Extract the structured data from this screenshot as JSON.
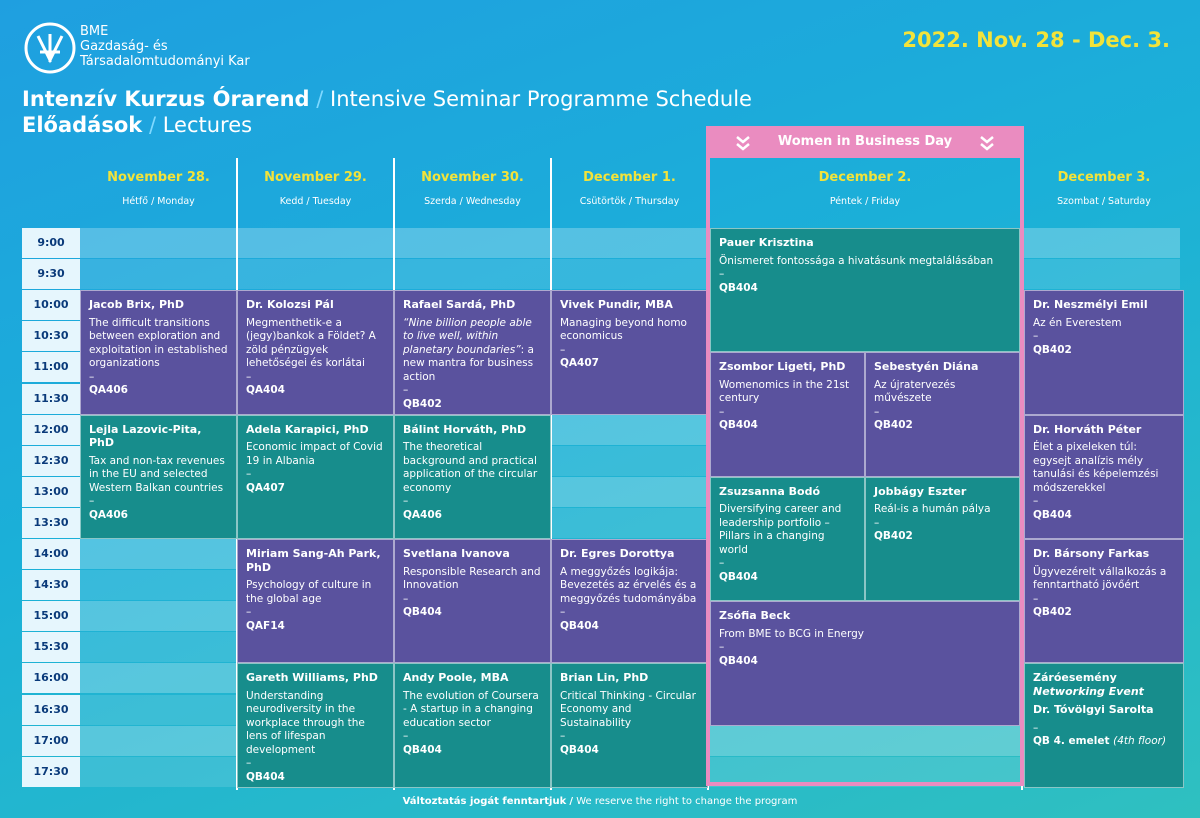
{
  "header": {
    "logo_lines": [
      "BME",
      "Gazdaság- és",
      "Társadalomtudományi Kar"
    ],
    "dates": "2022. Nov. 28 - Dec. 3.",
    "title_hu": "Intenzív Kurzus Órarend",
    "separator": "/",
    "title_en": "Intensive Seminar Programme Schedule",
    "subtitle_hu": "Előadások",
    "subtitle_en": "Lectures"
  },
  "banner": "Women in Business Day",
  "dash": "–",
  "times": [
    "9:00",
    "9:30",
    "10:00",
    "10:30",
    "11:00",
    "11:30",
    "12:00",
    "12:30",
    "13:00",
    "13:30",
    "14:00",
    "14:30",
    "15:00",
    "15:30",
    "16:00",
    "16:30",
    "17:00",
    "17:30"
  ],
  "days": [
    {
      "date": "November 28.",
      "weekday": "Hétfő / Monday",
      "sessions": [
        {
          "speaker": "Jacob Brix, PhD",
          "title": "The difficult transitions between exploration and exploitation in established organizations",
          "room": "QA406"
        },
        {
          "speaker": "Lejla Lazovic-Pita, PhD",
          "title": "Tax and non-tax revenues in the EU and selected Western Balkan countries",
          "room": "QA406"
        }
      ]
    },
    {
      "date": "November 29.",
      "weekday": "Kedd / Tuesday",
      "sessions": [
        {
          "speaker": "Dr. Kolozsi Pál",
          "title": "Megmenthetik-e a (jegy)bankok a Földet? A zöld pénzügyek lehetőségei és korlátai",
          "room": "QA404"
        },
        {
          "speaker": "Adela Karapici, PhD",
          "title": "Economic impact of Covid 19 in Albania",
          "room": "QA407"
        },
        {
          "speaker": "Miriam Sang-Ah Park, PhD",
          "title": "Psychology of culture in the global age",
          "room": "QAF14"
        },
        {
          "speaker": "Gareth Williams, PhD",
          "title": "Understanding neurodiversity in the workplace through the lens of lifespan development",
          "room": "QB404"
        }
      ]
    },
    {
      "date": "November 30.",
      "weekday": "Szerda / Wednesday",
      "sessions": [
        {
          "speaker": "Rafael Sardá, PhD",
          "title_italic": "“Nine billion people able to live well, within planetary boundaries”",
          "title": ": a new mantra for business action",
          "room": "QB402"
        },
        {
          "speaker": "Bálint Horváth, PhD",
          "title": "The theoretical background and practical application of the circular economy",
          "room": "QA406"
        },
        {
          "speaker": "Svetlana Ivanova",
          "title": "Responsible Research and Innovation",
          "room": "QB404"
        },
        {
          "speaker": "Andy Poole, MBA",
          "title": "The evolution of Coursera - A startup in a changing education sector",
          "room": "QB404"
        }
      ]
    },
    {
      "date": "December 1.",
      "weekday": "Csütörtök / Thursday",
      "sessions": [
        {
          "speaker": "Vivek Pundir, MBA",
          "title": "Managing beyond homo economicus",
          "room": "QA407"
        },
        {
          "speaker": "Dr. Egres Dorottya",
          "title": "A meggyőzés logikája: Bevezetés az érvelés és a meggyőzés tudományába",
          "room": "QB404"
        },
        {
          "speaker": "Brian Lin, PhD",
          "title": "Critical Thinking - Circular Economy and Sustainability",
          "room": "QB404"
        }
      ]
    },
    {
      "date": "December 2.",
      "weekday": "Péntek / Friday",
      "sessions": [
        {
          "speaker": "Pauer Krisztina",
          "title": "Önismeret fontossága a hivatásunk megtalálásában",
          "room": "QB404"
        },
        {
          "speaker": "Zsombor Ligeti, PhD",
          "title": "Womenomics in the 21st century",
          "room": "QB404"
        },
        {
          "speaker": "Sebestyén Diána",
          "title": "Az újratervezés művészete",
          "room": "QB402"
        },
        {
          "speaker": "Zsuzsanna Bodó",
          "title": "Diversifying career and leadership portfolio – Pillars in a changing world",
          "room": "QB404"
        },
        {
          "speaker": "Jobbágy Eszter",
          "title": "Reál-is a humán pálya",
          "room": "QB402"
        },
        {
          "speaker": "Zsófia Beck",
          "title": "From BME to BCG in Energy",
          "room": "QB404"
        }
      ]
    },
    {
      "date": "December 3.",
      "weekday": "Szombat / Saturday",
      "sessions": [
        {
          "speaker": "Dr. Neszmélyi Emil",
          "title": "Az én Everestem",
          "room": "QB402"
        },
        {
          "speaker": "Dr. Horváth Péter",
          "title": "Élet a pixeleken túl: egysejt analízis mély tanulási és képelemzési módszerekkel",
          "room": "QB404"
        },
        {
          "speaker": "Dr. Bársony Farkas",
          "title": "Ügyvezérelt vállalkozás a fenntartható jövőért",
          "room": "QB402"
        },
        {
          "label": "Záróesemény",
          "label_en": "Networking Event",
          "speaker": "Dr. Tóvölgyi Sarolta",
          "room": "QB 4. emelet",
          "room_note": "(4th floor)"
        }
      ]
    }
  ],
  "footer": {
    "note_hu": "Változtatás jogát fenntartjuk",
    "separator": "/",
    "note_en": "We reserve the right to change the program"
  }
}
